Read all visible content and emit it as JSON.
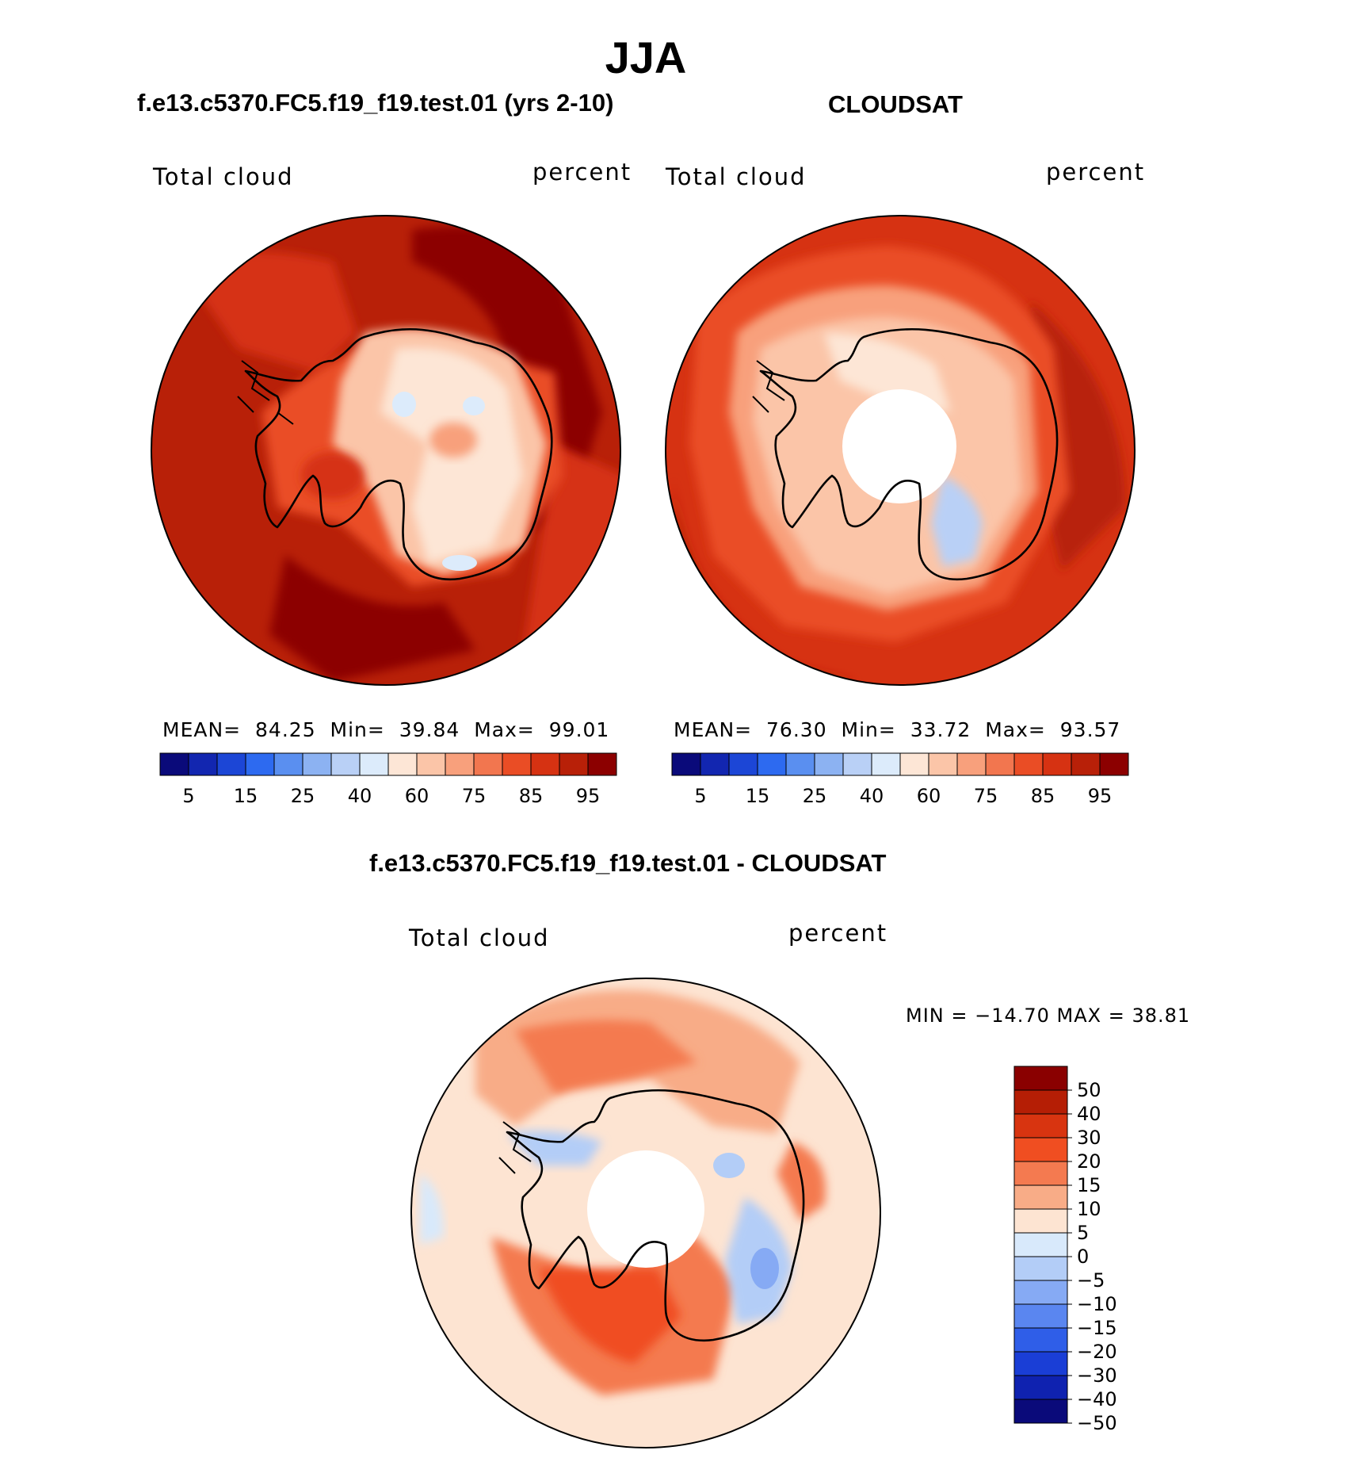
{
  "title": "JJA",
  "panels": [
    {
      "id": "model",
      "heading": "f.e13.c5370.FC5.f19_f19.test.01 (yrs 2-10)",
      "variable": "Total cloud",
      "units": "percent",
      "stats": {
        "mean_label": "MEAN=",
        "mean": "84.25",
        "min_label": "Min=",
        "min": "39.84",
        "max_label": "Max=",
        "max": "99.01"
      }
    },
    {
      "id": "obs",
      "heading": "CLOUDSAT",
      "variable": "Total cloud",
      "units": "percent",
      "stats": {
        "mean_label": "MEAN=",
        "mean": "76.30",
        "min_label": "Min=",
        "min": "33.72",
        "max_label": "Max=",
        "max": "93.57"
      }
    },
    {
      "id": "diff",
      "heading": "f.e13.c5370.FC5.f19_f19.test.01 - CLOUDSAT",
      "variable": "Total cloud",
      "units": "percent",
      "minmax": "MIN = −14.70 MAX =   38.81"
    }
  ],
  "colorbar_abs": {
    "colors": [
      "#0a0a7a",
      "#1226b0",
      "#1c46d6",
      "#2d6af0",
      "#5a8ff0",
      "#8cb2f2",
      "#b9d0f6",
      "#dcebfb",
      "#fde6d6",
      "#fbc5a8",
      "#f8a07c",
      "#f2764f",
      "#ea4d25",
      "#d63212",
      "#b82008",
      "#8c0000"
    ],
    "tick_labels": [
      "5",
      "15",
      "25",
      "40",
      "60",
      "75",
      "85",
      "95"
    ]
  },
  "colorbar_diff": {
    "colors": [
      "#8a0000",
      "#b51e05",
      "#d83410",
      "#f04e21",
      "#f47a50",
      "#f8ac87",
      "#fde4d2",
      "#d8e9fb",
      "#b3cdf7",
      "#86aaf4",
      "#5a86f0",
      "#2f5ee8",
      "#1a3ed6",
      "#0f22b0",
      "#0a0a7a"
    ],
    "tick_labels": [
      "50",
      "40",
      "30",
      "20",
      "15",
      "10",
      "5",
      "0",
      "−5",
      "−10",
      "−15",
      "−20",
      "−30",
      "−40",
      "−50"
    ]
  }
}
